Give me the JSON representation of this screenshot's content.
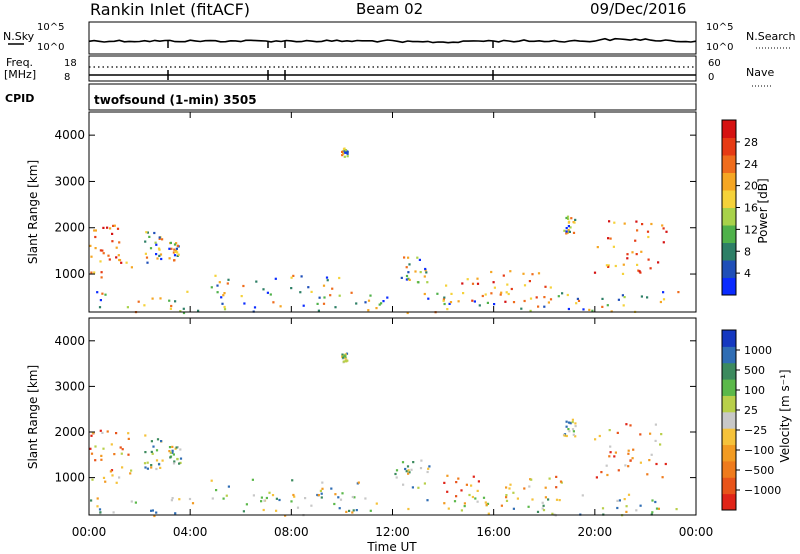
{
  "header": {
    "station": "Rankin Inlet (fitACF)",
    "beam": "Beam 02",
    "date": "09/Dec/2016"
  },
  "status_panels": {
    "nsky_label": "N.Sky",
    "nsearch_label": "N.Search",
    "freq_label": "Freq.",
    "freq_unit": "[MHz]",
    "nave_label": "Nave",
    "cpid_label": "CPID",
    "noise_left_ticks": [
      "10^5",
      "10^0"
    ],
    "noise_right_ticks": [
      "10^5",
      "10^0"
    ],
    "freq_ticks": [
      "18",
      "8"
    ],
    "nave_ticks": [
      "60",
      "0"
    ],
    "cpid_value": "twofsound (1-min) 3505"
  },
  "colors": {
    "power_scale": [
      "#0a2bff",
      "#1f4fb8",
      "#2d7f66",
      "#4fb14a",
      "#a8d24a",
      "#f5d23a",
      "#f5a623",
      "#ef6c1c",
      "#e63a14",
      "#d51212"
    ],
    "velocity_scale": [
      "#1538c0",
      "#2f6db4",
      "#3c8a5e",
      "#5bb84a",
      "#b8cf4a",
      "#c8c8c8",
      "#f5c23a",
      "#f29b22",
      "#ef7b1c",
      "#e8541a",
      "#e02418"
    ]
  },
  "chart_data": [
    {
      "type": "heatmap",
      "xlabel": "",
      "ylabel": "Slant Range [km]",
      "ylim": [
        180,
        4500
      ],
      "yticks": [
        "1000",
        "2000",
        "3000",
        "4000"
      ],
      "colorbar_label": "Power [dB]",
      "colorbar_ticks": [
        "4",
        "8",
        "12",
        "16",
        "20",
        "24",
        "28"
      ]
    },
    {
      "type": "heatmap",
      "xlabel": "Time UT",
      "ylabel": "Slant Range [km]",
      "ylim": [
        180,
        4500
      ],
      "yticks": [
        "1000",
        "2000",
        "3000",
        "4000"
      ],
      "xticks": [
        "00:00",
        "04:00",
        "08:00",
        "12:00",
        "16:00",
        "20:00",
        "00:00"
      ],
      "colorbar_label": "Velocity [m s⁻¹]",
      "colorbar_ticks": [
        "1000",
        "500",
        "100",
        "25",
        "−25",
        "−100",
        "−500",
        "−1000"
      ]
    }
  ]
}
